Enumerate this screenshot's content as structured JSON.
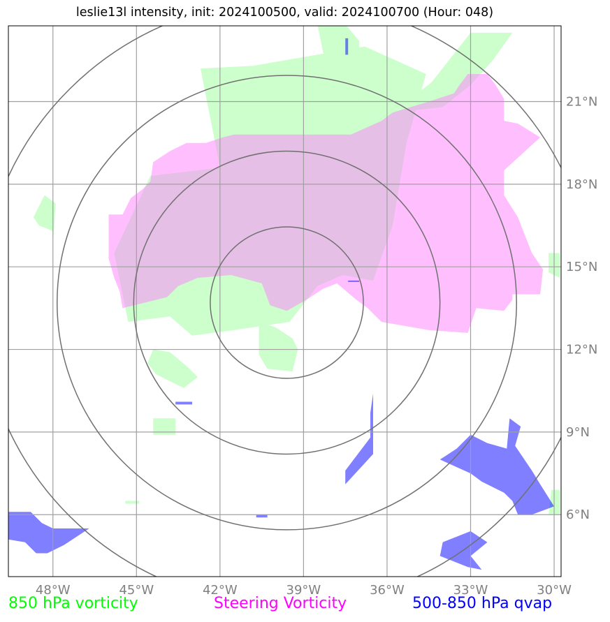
{
  "title": "leslie13l intensity, init: 2024100500, valid: 2024100700 (Hour: 048)",
  "map": {
    "lon_range": [
      -49.6,
      -29.75
    ],
    "lat_range": [
      3.75,
      23.75
    ],
    "lon_ticks": [
      {
        "value": -48,
        "label": "48°W"
      },
      {
        "value": -45,
        "label": "45°W"
      },
      {
        "value": -42,
        "label": "42°W"
      },
      {
        "value": -39,
        "label": "39°W"
      },
      {
        "value": -36,
        "label": "36°W"
      },
      {
        "value": -33,
        "label": "33°W"
      },
      {
        "value": -30,
        "label": "30°W"
      }
    ],
    "lat_ticks": [
      {
        "value": 21,
        "label": "21°N"
      },
      {
        "value": 18,
        "label": "18°N"
      },
      {
        "value": 15,
        "label": "15°N"
      },
      {
        "value": 12,
        "label": "12°N"
      },
      {
        "value": 9,
        "label": "9°N"
      },
      {
        "value": 6,
        "label": "6°N"
      }
    ],
    "grid": true,
    "center": {
      "lon": -39.6,
      "lat": 13.7
    },
    "range_rings_deg": [
      2.75,
      5.5,
      8.25,
      11.0
    ]
  },
  "legend": [
    {
      "label": "850 hPa vorticity",
      "color": "#00ff00"
    },
    {
      "label": "Steering Vorticity",
      "color": "#ff00ff"
    },
    {
      "label": "500-850 hPa qvap",
      "color": "#0000ff"
    }
  ],
  "fields": {
    "vorticity_850": {
      "color": "#ccffcc",
      "regions": [
        [
          [
            -40.8,
            22.3
          ],
          [
            -42.7,
            22.2
          ],
          [
            -42.0,
            18.6
          ],
          [
            -44.5,
            18.3
          ],
          [
            -45.8,
            15.5
          ],
          [
            -45.3,
            13.0
          ],
          [
            -43.8,
            13.2
          ],
          [
            -43.0,
            12.5
          ],
          [
            -41.5,
            12.7
          ],
          [
            -39.5,
            13.0
          ],
          [
            -38.5,
            14.3
          ],
          [
            -37.6,
            14.7
          ],
          [
            -36.5,
            14.5
          ],
          [
            -35.8,
            16.5
          ],
          [
            -35.3,
            19.5
          ],
          [
            -34.6,
            22.0
          ],
          [
            -36.8,
            23.0
          ]
        ],
        [
          [
            -38.5,
            23.8
          ],
          [
            -37.5,
            23.8
          ],
          [
            -37.0,
            23.2
          ],
          [
            -37.0,
            22.2
          ],
          [
            -38.0,
            22.1
          ],
          [
            -38.3,
            22.8
          ]
        ],
        [
          [
            -35.8,
            20.6
          ],
          [
            -34.4,
            21.7
          ],
          [
            -33.0,
            23.5
          ],
          [
            -31.5,
            23.5
          ],
          [
            -32.2,
            22.5
          ],
          [
            -33.0,
            21.6
          ],
          [
            -34.0,
            20.8
          ]
        ],
        [
          [
            -40.6,
            13.0
          ],
          [
            -40.0,
            12.8
          ],
          [
            -39.4,
            12.4
          ],
          [
            -39.2,
            12.0
          ],
          [
            -39.4,
            11.2
          ],
          [
            -40.3,
            11.3
          ],
          [
            -40.6,
            11.8
          ]
        ],
        [
          [
            -44.4,
            12.0
          ],
          [
            -43.8,
            11.9
          ],
          [
            -43.2,
            11.4
          ],
          [
            -42.8,
            11.0
          ],
          [
            -43.3,
            10.6
          ],
          [
            -44.3,
            11.1
          ],
          [
            -44.6,
            11.5
          ]
        ],
        [
          [
            -44.4,
            9.5
          ],
          [
            -43.6,
            9.5
          ],
          [
            -43.6,
            8.9
          ],
          [
            -44.4,
            8.9
          ]
        ],
        [
          [
            -48.5,
            16.5
          ],
          [
            -48.0,
            16.3
          ],
          [
            -48.0,
            15.8
          ],
          [
            -47.9,
            17.3
          ],
          [
            -48.3,
            17.6
          ],
          [
            -48.7,
            16.8
          ]
        ],
        [
          [
            -30.2,
            15.5
          ],
          [
            -29.8,
            15.5
          ],
          [
            -29.8,
            14.6
          ],
          [
            -30.2,
            14.8
          ]
        ],
        [
          [
            -30.1,
            6.9
          ],
          [
            -29.8,
            6.9
          ],
          [
            -29.8,
            6.0
          ],
          [
            -30.2,
            6.0
          ]
        ],
        [
          [
            -45.4,
            6.5
          ],
          [
            -44.9,
            6.5
          ],
          [
            -44.9,
            6.4
          ],
          [
            -45.4,
            6.4
          ]
        ]
      ]
    },
    "steering_vorticity": {
      "color": "#ff80ff",
      "alpha": 0.5,
      "regions": [
        [
          [
            -46.0,
            16.9
          ],
          [
            -45.5,
            16.9
          ],
          [
            -45.2,
            17.5
          ],
          [
            -44.8,
            17.8
          ],
          [
            -44.5,
            18.1
          ],
          [
            -44.4,
            18.8
          ],
          [
            -43.8,
            19.2
          ],
          [
            -43.2,
            19.5
          ],
          [
            -42.5,
            19.5
          ],
          [
            -41.9,
            19.7
          ],
          [
            -41.5,
            19.8
          ],
          [
            -38.2,
            19.8
          ],
          [
            -37.3,
            19.8
          ],
          [
            -36.2,
            20.3
          ],
          [
            -35.8,
            20.6
          ],
          [
            -34.5,
            21.0
          ],
          [
            -33.6,
            21.3
          ],
          [
            -33.4,
            21.6
          ],
          [
            -33.1,
            22.0
          ],
          [
            -32.4,
            22.0
          ],
          [
            -32.1,
            21.6
          ],
          [
            -31.8,
            21.1
          ],
          [
            -31.8,
            20.3
          ],
          [
            -31.3,
            20.2
          ],
          [
            -30.5,
            19.7
          ],
          [
            -31.8,
            18.5
          ],
          [
            -31.8,
            17.6
          ],
          [
            -31.3,
            16.8
          ],
          [
            -30.8,
            15.5
          ],
          [
            -30.4,
            14.9
          ],
          [
            -30.5,
            14.0
          ],
          [
            -31.5,
            14.0
          ],
          [
            -31.5,
            13.8
          ],
          [
            -31.8,
            13.4
          ],
          [
            -32.8,
            13.5
          ],
          [
            -33.1,
            12.6
          ],
          [
            -34.5,
            12.7
          ],
          [
            -36.2,
            13.0
          ],
          [
            -36.7,
            13.5
          ],
          [
            -37.1,
            13.8
          ],
          [
            -37.8,
            14.4
          ],
          [
            -38.3,
            14.2
          ],
          [
            -38.9,
            13.8
          ],
          [
            -39.6,
            13.4
          ],
          [
            -40.2,
            13.6
          ],
          [
            -40.5,
            14.4
          ],
          [
            -41.6,
            14.7
          ],
          [
            -42.8,
            14.6
          ],
          [
            -43.5,
            14.3
          ],
          [
            -43.9,
            13.9
          ],
          [
            -45.5,
            13.5
          ],
          [
            -45.6,
            14.1
          ],
          [
            -45.8,
            14.6
          ],
          [
            -46.0,
            15.3
          ]
        ]
      ]
    },
    "qvap_500_850": {
      "color": "#0000ff",
      "alpha": 0.5,
      "regions": [
        [
          [
            -49.6,
            6.1
          ],
          [
            -48.8,
            6.1
          ],
          [
            -48.4,
            5.7
          ],
          [
            -48.0,
            5.5
          ],
          [
            -46.7,
            5.5
          ],
          [
            -47.6,
            4.9
          ],
          [
            -48.2,
            4.6
          ],
          [
            -48.6,
            4.6
          ],
          [
            -49.0,
            5.0
          ],
          [
            -49.6,
            5.1
          ]
        ],
        [
          [
            -32.4,
            8.6
          ],
          [
            -31.7,
            8.4
          ],
          [
            -31.6,
            9.5
          ],
          [
            -31.2,
            9.2
          ],
          [
            -31.4,
            8.5
          ],
          [
            -30.8,
            7.6
          ],
          [
            -30.5,
            7.1
          ],
          [
            -30.0,
            6.3
          ],
          [
            -30.8,
            6.0
          ],
          [
            -31.3,
            6.0
          ],
          [
            -31.5,
            6.5
          ],
          [
            -31.8,
            6.8
          ],
          [
            -32.6,
            7.2
          ],
          [
            -33.0,
            7.5
          ],
          [
            -34.1,
            8.0
          ],
          [
            -33.5,
            8.4
          ],
          [
            -33.0,
            8.9
          ]
        ],
        [
          [
            -36.5,
            10.4
          ],
          [
            -36.5,
            8.2
          ],
          [
            -37.5,
            7.1
          ],
          [
            -37.5,
            7.6
          ],
          [
            -36.6,
            8.8
          ],
          [
            -36.6,
            9.7
          ]
        ],
        [
          [
            -33.0,
            5.4
          ],
          [
            -32.4,
            5.0
          ],
          [
            -33.0,
            4.5
          ],
          [
            -32.6,
            4.0
          ],
          [
            -33.1,
            4.1
          ],
          [
            -34.1,
            4.5
          ],
          [
            -34.0,
            5.0
          ]
        ],
        [
          [
            -37.4,
            23.3
          ],
          [
            -37.4,
            22.7
          ],
          [
            -37.5,
            22.7
          ],
          [
            -37.5,
            23.3
          ]
        ],
        [
          [
            -37.4,
            14.5
          ],
          [
            -37.0,
            14.5
          ],
          [
            -37.0,
            14.45
          ],
          [
            -37.4,
            14.45
          ]
        ],
        [
          [
            -43.6,
            10.1
          ],
          [
            -43.0,
            10.1
          ],
          [
            -43.0,
            10.0
          ],
          [
            -43.6,
            10.0
          ]
        ],
        [
          [
            -40.7,
            6.0
          ],
          [
            -40.3,
            6.0
          ],
          [
            -40.3,
            5.9
          ],
          [
            -40.7,
            5.9
          ]
        ]
      ]
    }
  }
}
